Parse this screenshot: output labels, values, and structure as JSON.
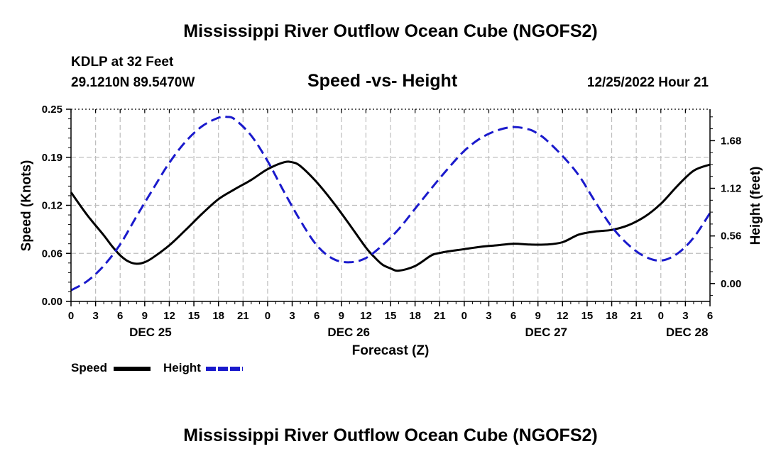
{
  "header": {
    "title": "Mississippi River Outflow Ocean Cube (NGOFS2)",
    "station": "KDLP at 32 Feet",
    "coordinates": "29.1210N  89.5470W",
    "subtitle": "Speed -vs- Height",
    "datetime": "12/25/2022 Hour 21"
  },
  "footer": {
    "title": "Mississippi River Outflow Ocean Cube (NGOFS2)"
  },
  "legend": {
    "speed_label": "Speed",
    "height_label": "Height"
  },
  "chart_data": {
    "type": "line",
    "title": "Speed -vs- Height",
    "xlabel": "Forecast (Z)",
    "ylabel": "Speed (Knots)",
    "y2label": "Height (feet)",
    "x_hours_range": [
      0,
      78
    ],
    "ylim": [
      0.0,
      0.25
    ],
    "y2lim": [
      -0.21,
      2.05
    ],
    "y_ticks": [
      "0.00",
      "0.06",
      "0.12",
      "0.19",
      "0.25"
    ],
    "y_tick_values": [
      0.0,
      0.0625,
      0.125,
      0.1875,
      0.25
    ],
    "y2_ticks": [
      "0.00",
      "0.56",
      "1.12",
      "1.68"
    ],
    "y2_tick_values": [
      0.0,
      0.56,
      1.12,
      1.68
    ],
    "x_tick_labels": [
      "0",
      "3",
      "6",
      "9",
      "12",
      "15",
      "18",
      "21",
      "0",
      "3",
      "6",
      "9",
      "12",
      "15",
      "18",
      "21",
      "0",
      "3",
      "6",
      "9",
      "12",
      "15",
      "18",
      "21",
      "0",
      "3",
      "6"
    ],
    "date_labels": [
      {
        "label": "DEC 25",
        "hour": 9.7
      },
      {
        "label": "DEC 26",
        "hour": 33.9
      },
      {
        "label": "DEC 27",
        "hour": 58.0
      },
      {
        "label": "DEC 28",
        "hour": 75.2
      }
    ],
    "grid": true,
    "series": [
      {
        "name": "Speed",
        "axis": "left",
        "color": "#000000",
        "style": "solid",
        "x": [
          0,
          2,
          4,
          5,
          6,
          7,
          8,
          9,
          10,
          12,
          14,
          16,
          18,
          20,
          22,
          24,
          26,
          27,
          28,
          30,
          32,
          34,
          36,
          37,
          38,
          39,
          40,
          42,
          44,
          45,
          46,
          48,
          50,
          52,
          54,
          56,
          58,
          60,
          62,
          64,
          66,
          68,
          70,
          72,
          74,
          76,
          78
        ],
        "values": [
          0.142,
          0.112,
          0.086,
          0.072,
          0.06,
          0.052,
          0.049,
          0.051,
          0.057,
          0.073,
          0.093,
          0.114,
          0.133,
          0.146,
          0.158,
          0.172,
          0.181,
          0.181,
          0.176,
          0.155,
          0.129,
          0.1,
          0.07,
          0.058,
          0.048,
          0.043,
          0.04,
          0.046,
          0.06,
          0.063,
          0.065,
          0.068,
          0.071,
          0.073,
          0.075,
          0.074,
          0.074,
          0.077,
          0.087,
          0.091,
          0.093,
          0.099,
          0.11,
          0.127,
          0.15,
          0.17,
          0.178
        ]
      },
      {
        "name": "Height",
        "axis": "right",
        "color": "#1a1acc",
        "style": "dashed",
        "x": [
          0,
          2,
          4,
          6,
          8,
          10,
          12,
          14,
          16,
          18,
          19,
          20,
          22,
          24,
          26,
          28,
          30,
          32,
          34,
          36,
          38,
          40,
          42,
          44,
          46,
          48,
          50,
          52,
          54,
          56,
          57,
          58,
          60,
          62,
          64,
          66,
          68,
          70,
          72,
          74,
          76,
          78
        ],
        "values": [
          -0.08,
          0.03,
          0.21,
          0.46,
          0.79,
          1.11,
          1.42,
          1.67,
          1.85,
          1.95,
          1.96,
          1.93,
          1.74,
          1.44,
          1.08,
          0.74,
          0.45,
          0.29,
          0.25,
          0.3,
          0.45,
          0.64,
          0.88,
          1.12,
          1.35,
          1.56,
          1.71,
          1.8,
          1.84,
          1.81,
          1.76,
          1.69,
          1.5,
          1.27,
          0.96,
          0.67,
          0.46,
          0.32,
          0.27,
          0.35,
          0.54,
          0.83
        ]
      }
    ]
  }
}
